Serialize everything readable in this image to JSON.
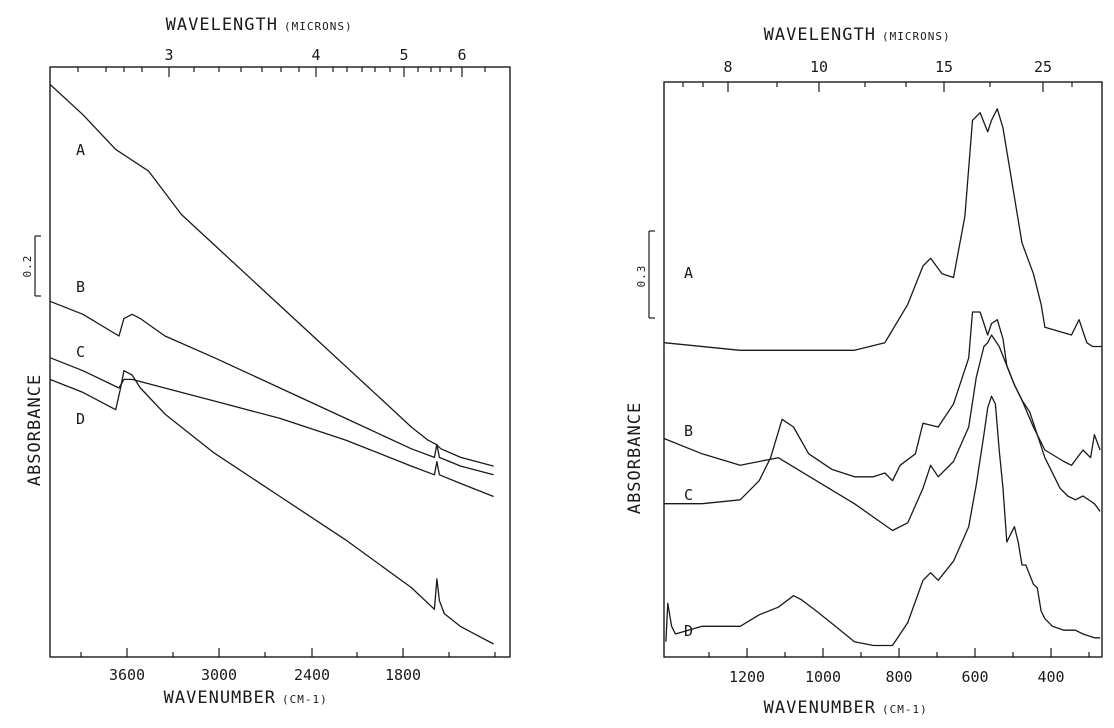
{
  "colors": {
    "ink": "#1a1a1a",
    "background": "#ffffff"
  },
  "chart_data": [
    {
      "type": "line",
      "panel": "left",
      "xlabel": "WAVENUMBER",
      "xlabel_unit": "(CM-1)",
      "top_xlabel": "WAVELENGTH",
      "top_xlabel_unit": "(MICRONS)",
      "ylabel": "ABSORBANCE",
      "scale_bar_label": "0.2",
      "scale_bar_value": 0.2,
      "x_reversed": true,
      "xlim": [
        4000,
        1200
      ],
      "ylim": [
        0,
        1.36
      ],
      "x_ticks": [
        3600,
        3000,
        2400,
        1800
      ],
      "top_ticks": [
        3,
        4,
        5,
        6
      ],
      "series": [
        {
          "name": "A",
          "x": [
            4000,
            3800,
            3600,
            3400,
            3200,
            3000,
            2800,
            2600,
            2400,
            2200,
            2000,
            1800,
            1700,
            1650,
            1620,
            1500,
            1300
          ],
          "y": [
            1.32,
            1.25,
            1.17,
            1.12,
            1.02,
            0.95,
            0.88,
            0.81,
            0.74,
            0.67,
            0.6,
            0.53,
            0.5,
            0.49,
            0.48,
            0.46,
            0.44
          ]
        },
        {
          "name": "B",
          "x": [
            4000,
            3800,
            3580,
            3550,
            3500,
            3450,
            3300,
            3000,
            2600,
            2200,
            1800,
            1660,
            1645,
            1630,
            1500,
            1300
          ],
          "y": [
            0.82,
            0.79,
            0.74,
            0.78,
            0.79,
            0.78,
            0.74,
            0.69,
            0.62,
            0.55,
            0.48,
            0.46,
            0.49,
            0.46,
            0.44,
            0.42
          ]
        },
        {
          "name": "C",
          "x": [
            4000,
            3800,
            3580,
            3550,
            3500,
            3400,
            3200,
            3000,
            2600,
            2200,
            1800,
            1660,
            1645,
            1630,
            1500,
            1300
          ],
          "y": [
            0.69,
            0.66,
            0.62,
            0.64,
            0.64,
            0.63,
            0.61,
            0.59,
            0.55,
            0.5,
            0.44,
            0.42,
            0.45,
            0.42,
            0.4,
            0.37
          ]
        },
        {
          "name": "D",
          "x": [
            4000,
            3800,
            3600,
            3570,
            3550,
            3500,
            3450,
            3300,
            3000,
            2600,
            2200,
            1800,
            1660,
            1645,
            1630,
            1600,
            1500,
            1300
          ],
          "y": [
            0.64,
            0.61,
            0.57,
            0.62,
            0.66,
            0.65,
            0.62,
            0.56,
            0.47,
            0.37,
            0.27,
            0.16,
            0.11,
            0.18,
            0.13,
            0.1,
            0.07,
            0.03
          ]
        }
      ]
    },
    {
      "type": "line",
      "panel": "right",
      "xlabel": "WAVENUMBER",
      "xlabel_unit": "(CM-1)",
      "top_xlabel": "WAVELENGTH",
      "top_xlabel_unit": "(MICRONS)",
      "ylabel": "ABSORBANCE",
      "scale_bar_label": "0.3",
      "scale_bar_value": 0.3,
      "x_reversed": true,
      "xlim": [
        1400,
        250
      ],
      "ylim": [
        0,
        1.5
      ],
      "x_ticks": [
        1200,
        1000,
        800,
        600,
        400
      ],
      "top_ticks": [
        8,
        10,
        15,
        25
      ],
      "series": [
        {
          "name": "A",
          "x": [
            1400,
            1200,
            1000,
            900,
            820,
            760,
            720,
            700,
            670,
            640,
            610,
            590,
            570,
            550,
            540,
            525,
            510,
            480,
            460,
            430,
            410,
            400,
            330,
            310,
            290,
            275,
            250
          ],
          "y": [
            0.82,
            0.8,
            0.8,
            0.8,
            0.82,
            0.92,
            1.02,
            1.04,
            1.0,
            0.99,
            1.15,
            1.4,
            1.42,
            1.37,
            1.4,
            1.43,
            1.38,
            1.2,
            1.08,
            1.0,
            0.92,
            0.86,
            0.84,
            0.88,
            0.82,
            0.81,
            0.81
          ]
        },
        {
          "name": "B",
          "x": [
            1400,
            1300,
            1200,
            1150,
            1120,
            1090,
            1060,
            1020,
            960,
            900,
            850,
            820,
            800,
            780,
            740,
            720,
            680,
            640,
            600,
            590,
            570,
            550,
            540,
            525,
            510,
            500,
            480,
            460,
            430,
            400,
            350,
            330,
            300,
            280,
            270,
            255
          ],
          "y": [
            0.4,
            0.4,
            0.41,
            0.46,
            0.52,
            0.62,
            0.6,
            0.53,
            0.49,
            0.47,
            0.47,
            0.48,
            0.46,
            0.5,
            0.53,
            0.61,
            0.6,
            0.66,
            0.78,
            0.9,
            0.9,
            0.84,
            0.87,
            0.88,
            0.83,
            0.76,
            0.71,
            0.67,
            0.6,
            0.54,
            0.51,
            0.5,
            0.54,
            0.52,
            0.58,
            0.54
          ]
        },
        {
          "name": "C",
          "x": [
            1400,
            1300,
            1200,
            1100,
            1000,
            900,
            800,
            760,
            720,
            700,
            680,
            640,
            600,
            580,
            560,
            550,
            540,
            520,
            480,
            460,
            440,
            420,
            400,
            360,
            340,
            320,
            300,
            270,
            255
          ],
          "y": [
            0.57,
            0.53,
            0.5,
            0.52,
            0.46,
            0.4,
            0.33,
            0.35,
            0.44,
            0.5,
            0.47,
            0.51,
            0.6,
            0.73,
            0.81,
            0.82,
            0.84,
            0.81,
            0.71,
            0.67,
            0.64,
            0.58,
            0.52,
            0.44,
            0.42,
            0.41,
            0.42,
            0.4,
            0.38
          ]
        },
        {
          "name": "D",
          "x": [
            1395,
            1390,
            1380,
            1370,
            1300,
            1200,
            1150,
            1100,
            1060,
            1040,
            1000,
            950,
            900,
            850,
            800,
            760,
            720,
            700,
            680,
            640,
            600,
            580,
            560,
            550,
            540,
            530,
            520,
            510,
            500,
            480,
            470,
            460,
            450,
            430,
            420,
            410,
            400,
            380,
            350,
            320,
            300,
            270,
            255
          ],
          "y": [
            0.04,
            0.14,
            0.08,
            0.06,
            0.08,
            0.08,
            0.11,
            0.13,
            0.16,
            0.15,
            0.12,
            0.08,
            0.04,
            0.03,
            0.03,
            0.09,
            0.2,
            0.22,
            0.2,
            0.25,
            0.34,
            0.45,
            0.58,
            0.65,
            0.68,
            0.66,
            0.54,
            0.44,
            0.3,
            0.34,
            0.3,
            0.24,
            0.24,
            0.19,
            0.18,
            0.12,
            0.1,
            0.08,
            0.07,
            0.07,
            0.06,
            0.05,
            0.05
          ]
        }
      ]
    }
  ]
}
